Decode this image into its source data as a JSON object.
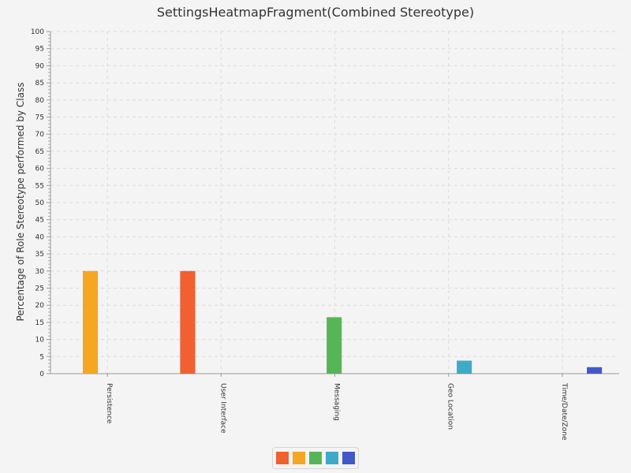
{
  "chart_data": {
    "type": "bar",
    "title": "SettingsHeatmapFragment(Combined Stereotype)",
    "ylabel": "Percentage of Role Stereotype performed by Class",
    "xlabel": "",
    "ylim": [
      0,
      100
    ],
    "ytick_step": 5,
    "grid": true,
    "categories": [
      "Persistence",
      "User Interface",
      "Messaging",
      "Geo Location",
      "Time/Date/Zone"
    ],
    "series": [
      {
        "color": "#f06030",
        "values": [
          0,
          30,
          0,
          0,
          0
        ]
      },
      {
        "color": "#f5a623",
        "values": [
          30,
          0,
          0,
          0,
          0
        ]
      },
      {
        "color": "#56b556",
        "values": [
          0,
          0,
          16.5,
          0,
          0
        ]
      },
      {
        "color": "#3fa9c8",
        "values": [
          0,
          0,
          0,
          3.8,
          0
        ]
      },
      {
        "color": "#4358c8",
        "values": [
          0,
          0,
          0,
          0,
          1.9
        ]
      }
    ],
    "legend_position": "bottom"
  }
}
